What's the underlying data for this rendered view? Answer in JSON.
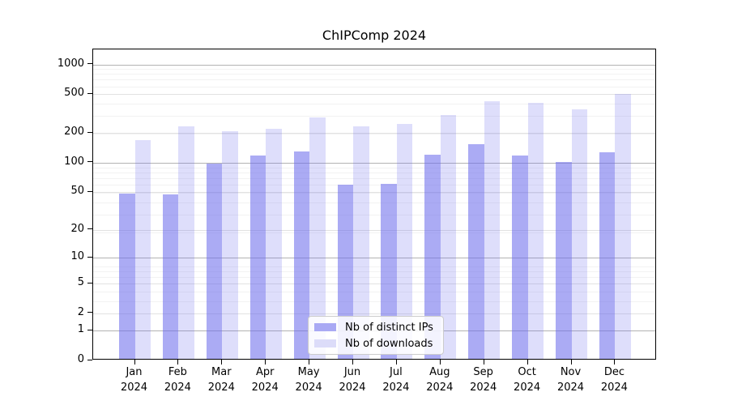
{
  "chart_data": {
    "type": "bar",
    "title": "ChIPComp 2024",
    "categories": [
      "Jan",
      "Feb",
      "Mar",
      "Apr",
      "May",
      "Jun",
      "Jul",
      "Aug",
      "Sep",
      "Oct",
      "Nov",
      "Dec"
    ],
    "x_year_label": "2024",
    "series": [
      {
        "name": "Nb of distinct IPs",
        "color": "#a9a9f4",
        "values": [
          46,
          45,
          95,
          115,
          125,
          57,
          58,
          116,
          150,
          114,
          97,
          124
        ]
      },
      {
        "name": "Nb of downloads",
        "color": "#dcdcf9",
        "values": [
          165,
          225,
          200,
          215,
          280,
          225,
          240,
          295,
          410,
          390,
          335,
          485
        ]
      }
    ],
    "y_scale": "log10(value+1)",
    "y_ticks": [
      0,
      1,
      2,
      5,
      10,
      20,
      50,
      100,
      200,
      500,
      1000
    ],
    "y_tick_labels": [
      "0",
      "1",
      "2",
      "5",
      "10",
      "20",
      "50",
      "100",
      "200",
      "500",
      "1000"
    ],
    "y_major_gridlines": [
      1,
      10,
      100,
      1000
    ],
    "ylim": [
      0,
      1280
    ],
    "grid": true,
    "legend_position": "lower center",
    "xlabel": "",
    "ylabel": ""
  },
  "legend": {
    "items": [
      {
        "label": "Nb of distinct IPs",
        "swatch_color": "#a9a9f4"
      },
      {
        "label": "Nb of downloads",
        "swatch_color": "#dcdcf9"
      }
    ]
  },
  "colors": {
    "background": "#ffffff",
    "accent": "#6969eb",
    "bar_ips": "#a9a9f4",
    "bar_downloads": "#dcdcf9",
    "major_gridline": "#b3b3b3",
    "gridline": "#e2e2e2",
    "minor_gridline": "#f2f2f2",
    "axis": "#000000",
    "text": "#000000"
  }
}
